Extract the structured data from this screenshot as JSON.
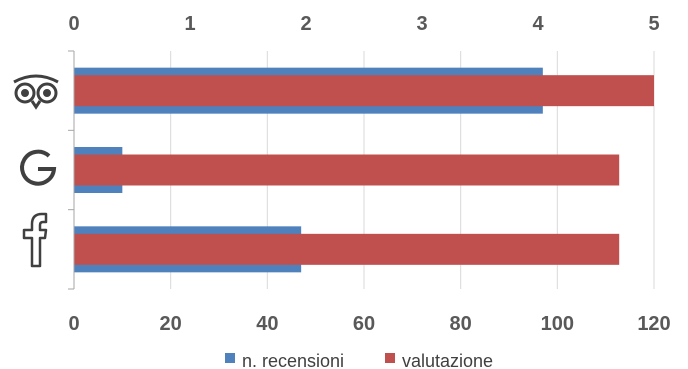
{
  "chart_data": {
    "type": "bar",
    "orientation": "horizontal",
    "categories": [
      "tripadvisor",
      "google",
      "facebook"
    ],
    "category_icons": [
      "tripadvisor-owl-icon",
      "google-g-icon",
      "facebook-f-icon"
    ],
    "series": [
      {
        "name": "n. recensioni",
        "axis": "bottom",
        "color": "#4F81BD",
        "values": [
          97,
          10,
          47
        ]
      },
      {
        "name": "valutazione",
        "axis": "top",
        "color": "#C0504D",
        "values": [
          5.0,
          4.7,
          4.7
        ]
      }
    ],
    "bottom_axis": {
      "min": 0,
      "max": 120,
      "ticks": [
        "0",
        "20",
        "40",
        "60",
        "80",
        "100",
        "120"
      ]
    },
    "top_axis": {
      "min": 0,
      "max": 5,
      "ticks": [
        "0",
        "1",
        "2",
        "3",
        "4",
        "5"
      ]
    },
    "grid": true,
    "legend": "bottom",
    "legend_items": [
      {
        "label": "n. recensioni",
        "color": "#4F81BD"
      },
      {
        "label": "valutazione",
        "color": "#C0504D"
      }
    ]
  }
}
